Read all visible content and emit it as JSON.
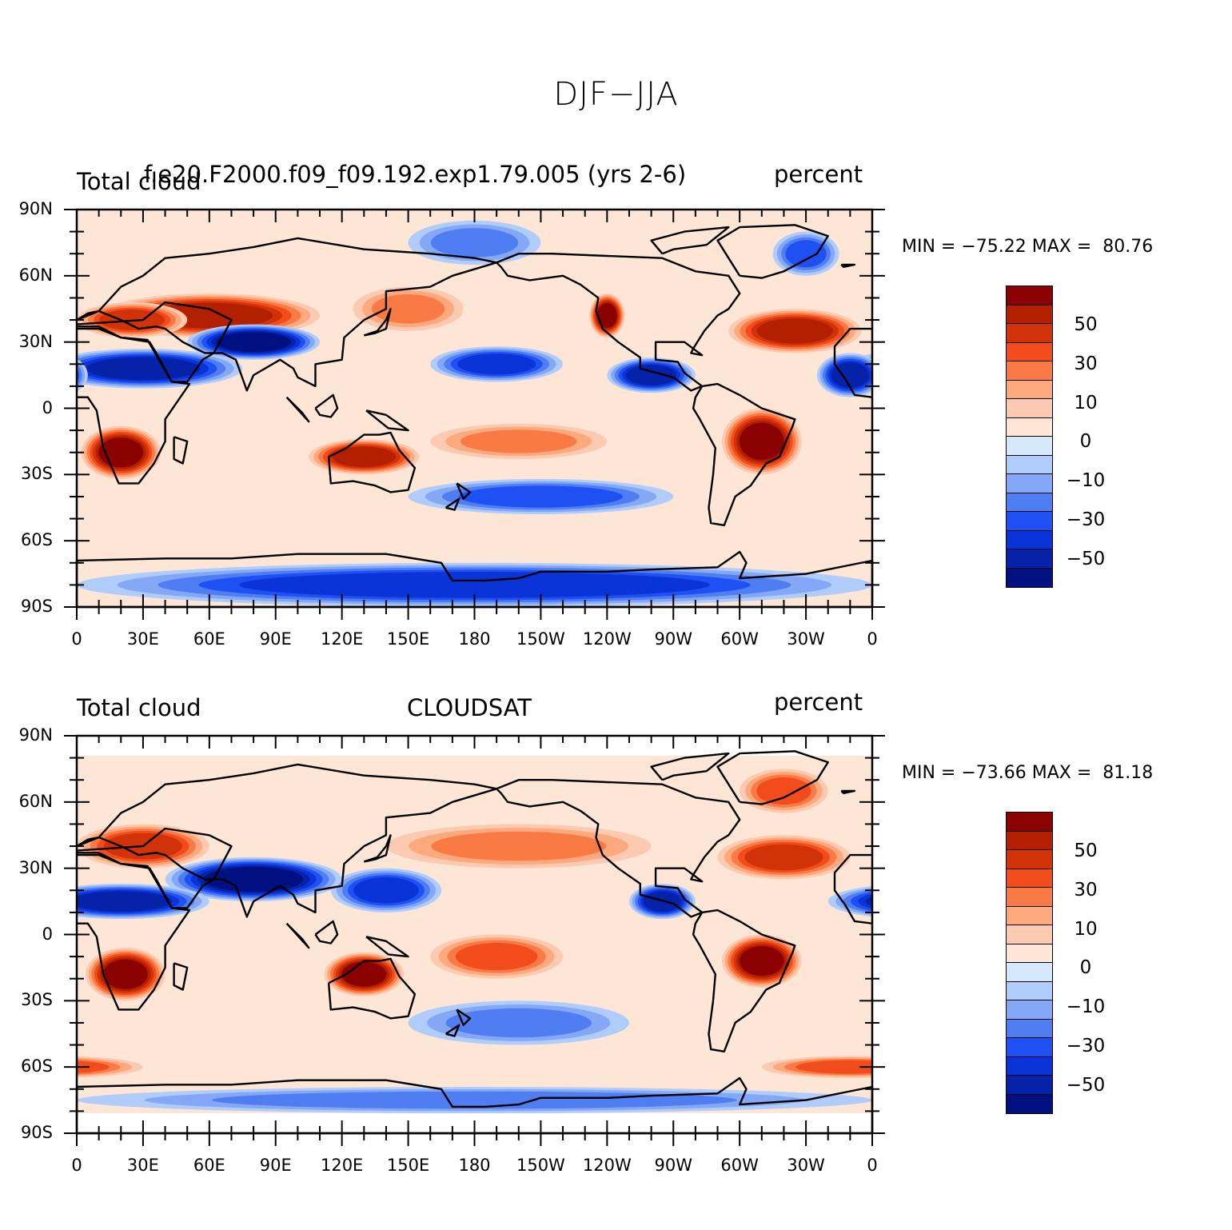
{
  "figure": {
    "title": "DJF−JJA"
  },
  "colors": {
    "levels": [
      "#8b0000",
      "#b22000",
      "#d23208",
      "#f24c1c",
      "#fa7a46",
      "#fca97e",
      "#fccab0",
      "#fde6d6",
      "#d6e8fb",
      "#b0ccfa",
      "#85a8f6",
      "#4f7ef2",
      "#1e50f4",
      "#0a34d8",
      "#0522a8",
      "#001080"
    ],
    "coast": "#000000"
  },
  "icons": {
    "coastline": "coastline-outline"
  },
  "panels": [
    {
      "left_title": "Total cloud",
      "center_title": "f.e20.F2000.f09_f09.192.exp1.79.005 (yrs 2-6)",
      "right_title": "percent",
      "min_max": "MIN = −75.22 MAX =  80.76"
    },
    {
      "left_title": "Total cloud",
      "center_title": "CLOUDSAT",
      "right_title": "percent",
      "min_max": "MIN = −73.66 MAX =  81.18"
    }
  ],
  "axes": {
    "y_ticks": [
      "90N",
      "60N",
      "30N",
      "0",
      "30S",
      "60S",
      "90S"
    ],
    "x_ticks": [
      "0",
      "30E",
      "60E",
      "90E",
      "120E",
      "150E",
      "180",
      "150W",
      "120W",
      "90W",
      "60W",
      "30W",
      "0"
    ]
  },
  "colorbar": {
    "labels": [
      "50",
      "30",
      "10",
      "0",
      "−10",
      "−30",
      "−50"
    ]
  },
  "chart_data": [
    {
      "type": "heatmap",
      "projection": "cylindrical-equidistant",
      "xlim": [
        0,
        360
      ],
      "ylim": [
        -90,
        90
      ],
      "field_range": [
        -75.22,
        80.76
      ],
      "contour_levels": [
        -70,
        -60,
        -50,
        -40,
        -30,
        -20,
        -10,
        -5,
        0,
        5,
        10,
        20,
        30,
        40,
        50,
        60
      ],
      "features": [
        {
          "lon": 20,
          "lat": -20,
          "rx": 18,
          "ry": 12,
          "v": 70
        },
        {
          "lon": 60,
          "lat": 42,
          "rx": 50,
          "ry": 10,
          "v": 55
        },
        {
          "lon": 25,
          "lat": 40,
          "rx": 25,
          "ry": 8,
          "v": 45
        },
        {
          "lon": 80,
          "lat": 30,
          "rx": 30,
          "ry": 8,
          "v": -60
        },
        {
          "lon": 30,
          "lat": 18,
          "rx": 45,
          "ry": 9,
          "v": -50
        },
        {
          "lon": 130,
          "lat": -22,
          "rx": 25,
          "ry": 8,
          "v": 55
        },
        {
          "lon": 190,
          "lat": 20,
          "rx": 30,
          "ry": 8,
          "v": -45
        },
        {
          "lon": 240,
          "lat": 42,
          "rx": 8,
          "ry": 10,
          "v": 60
        },
        {
          "lon": 260,
          "lat": 15,
          "rx": 20,
          "ry": 8,
          "v": -55
        },
        {
          "lon": 310,
          "lat": -15,
          "rx": 18,
          "ry": 15,
          "v": 65
        },
        {
          "lon": 325,
          "lat": 35,
          "rx": 30,
          "ry": 10,
          "v": 55
        },
        {
          "lon": 350,
          "lat": 15,
          "rx": 15,
          "ry": 10,
          "v": -55
        },
        {
          "lon": 210,
          "lat": -40,
          "rx": 60,
          "ry": 8,
          "v": -35
        },
        {
          "lon": 180,
          "lat": -80,
          "rx": 180,
          "ry": 10,
          "v": -40
        },
        {
          "lon": 180,
          "lat": 75,
          "rx": 30,
          "ry": 10,
          "v": -20
        },
        {
          "lon": 330,
          "lat": 70,
          "rx": 15,
          "ry": 10,
          "v": -30
        },
        {
          "lon": 200,
          "lat": -15,
          "rx": 40,
          "ry": 8,
          "v": 25
        },
        {
          "lon": 150,
          "lat": 45,
          "rx": 25,
          "ry": 10,
          "v": 20
        }
      ]
    },
    {
      "type": "heatmap",
      "projection": "cylindrical-equidistant",
      "xlim": [
        0,
        360
      ],
      "ylim": [
        -90,
        90
      ],
      "data_lat_range": [
        -81,
        81
      ],
      "field_range": [
        -73.66,
        81.18
      ],
      "contour_levels": [
        -70,
        -60,
        -50,
        -40,
        -30,
        -20,
        -10,
        -5,
        0,
        5,
        10,
        20,
        30,
        40,
        50,
        60
      ],
      "features": [
        {
          "lon": 22,
          "lat": -18,
          "rx": 18,
          "ry": 12,
          "v": 70
        },
        {
          "lon": 80,
          "lat": 25,
          "rx": 40,
          "ry": 10,
          "v": -65
        },
        {
          "lon": 20,
          "lat": 15,
          "rx": 40,
          "ry": 8,
          "v": -50
        },
        {
          "lon": 130,
          "lat": -18,
          "rx": 18,
          "ry": 10,
          "v": 60
        },
        {
          "lon": 310,
          "lat": -12,
          "rx": 18,
          "ry": 12,
          "v": 70
        },
        {
          "lon": 265,
          "lat": 15,
          "rx": 15,
          "ry": 8,
          "v": -55
        },
        {
          "lon": 190,
          "lat": -10,
          "rx": 30,
          "ry": 10,
          "v": 35
        },
        {
          "lon": 320,
          "lat": 35,
          "rx": 30,
          "ry": 10,
          "v": 40
        },
        {
          "lon": 140,
          "lat": 20,
          "rx": 25,
          "ry": 10,
          "v": -40
        },
        {
          "lon": 180,
          "lat": -75,
          "rx": 180,
          "ry": 6,
          "v": -20
        },
        {
          "lon": 350,
          "lat": -60,
          "rx": 40,
          "ry": 5,
          "v": 35
        },
        {
          "lon": 30,
          "lat": 40,
          "rx": 30,
          "ry": 10,
          "v": 45
        },
        {
          "lon": 200,
          "lat": 40,
          "rx": 60,
          "ry": 10,
          "v": 20
        },
        {
          "lon": 200,
          "lat": -40,
          "rx": 50,
          "ry": 10,
          "v": -25
        },
        {
          "lon": 320,
          "lat": 65,
          "rx": 20,
          "ry": 10,
          "v": 30
        }
      ]
    }
  ]
}
